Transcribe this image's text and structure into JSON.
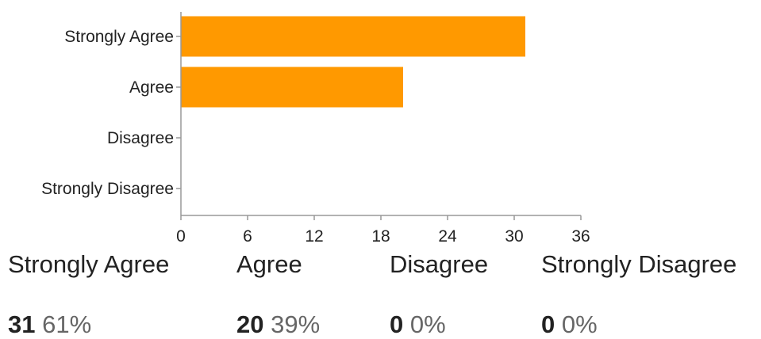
{
  "chart_data": {
    "type": "bar",
    "orientation": "horizontal",
    "categories": [
      "Strongly Agree",
      "Agree",
      "Disagree",
      "Strongly Disagree"
    ],
    "values": [
      31,
      20,
      0,
      0
    ],
    "xlim": [
      0,
      36
    ],
    "xticks": [
      0,
      6,
      12,
      18,
      24,
      30,
      36
    ],
    "title": "",
    "xlabel": "",
    "ylabel": "",
    "grid": false,
    "bar_color": "#ff9900"
  },
  "summary": [
    {
      "label": "Strongly Agree",
      "count": "31",
      "percent": "61%"
    },
    {
      "label": "Agree",
      "count": "20",
      "percent": "39%"
    },
    {
      "label": "Disagree",
      "count": "0",
      "percent": "0%"
    },
    {
      "label": "Strongly Disagree",
      "count": "0",
      "percent": "0%"
    }
  ]
}
